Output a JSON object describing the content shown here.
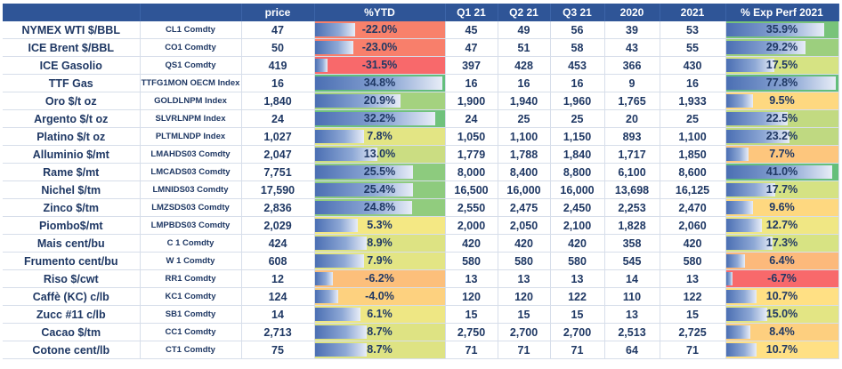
{
  "headers": [
    "",
    "",
    "price",
    "%YTD",
    "Q1 21",
    "Q2 21",
    "Q3 21",
    "2020",
    "2021",
    "% Exp Perf 2021"
  ],
  "rows": [
    {
      "name": "NYMEX WTI $/BBL",
      "ticker": "CL1 Comdty",
      "price": "47",
      "ytd": "-22.0%",
      "ytd_bg": "#f8816b",
      "ytd_bar": 0.31,
      "q1": "45",
      "q2": "49",
      "q3": "56",
      "y2020": "39",
      "y2021": "53",
      "exp": "35.9%",
      "exp_bg": "#78c37a",
      "exp_bar": 0.88
    },
    {
      "name": "ICE Brent $/BBL",
      "ticker": "CO1 Comdty",
      "price": "50",
      "ytd": "-23.0%",
      "ytd_bg": "#f87f6b",
      "ytd_bar": 0.3,
      "q1": "47",
      "q2": "51",
      "q3": "58",
      "y2020": "43",
      "y2021": "55",
      "exp": "29.2%",
      "exp_bg": "#9ccf7e",
      "exp_bar": 0.71
    },
    {
      "name": "ICE Gasolio",
      "ticker": "QS1 Comdty",
      "price": "419",
      "ytd": "-31.5%",
      "ytd_bg": "#f8696b",
      "ytd_bar": 0.1,
      "q1": "397",
      "q2": "428",
      "q3": "453",
      "y2020": "366",
      "y2021": "430",
      "exp": "17.5%",
      "exp_bg": "#d6e383",
      "exp_bar": 0.43
    },
    {
      "name": "TTF Gas",
      "ticker": "TTFG1MON OECM Index",
      "price": "16",
      "ytd": "34.8%",
      "ytd_bg": "#63be7b",
      "ytd_bar": 0.98,
      "q1": "16",
      "q2": "16",
      "q3": "16",
      "y2020": "9",
      "y2021": "16",
      "exp": "77.8%",
      "exp_bg": "#63be7b",
      "exp_bar": 0.98
    },
    {
      "name": "Oro $/t oz",
      "ticker": "GOLDLNPM Index",
      "price": "1,840",
      "ytd": "20.9%",
      "ytd_bg": "#a4d27f",
      "ytd_bar": 0.66,
      "q1": "1,900",
      "q2": "1,940",
      "q3": "1,960",
      "y2020": "1,765",
      "y2021": "1,933",
      "exp": "9.5%",
      "exp_bg": "#fed880",
      "exp_bar": 0.24
    },
    {
      "name": "Argento $/t oz",
      "ticker": "SLVRLNPM Index",
      "price": "24",
      "ytd": "32.2%",
      "ytd_bg": "#70c27c",
      "ytd_bar": 0.93,
      "q1": "24",
      "q2": "25",
      "q3": "25",
      "y2020": "20",
      "y2021": "25",
      "exp": "22.5%",
      "exp_bg": "#c2da81",
      "exp_bar": 0.55
    },
    {
      "name": "Platino $/t oz",
      "ticker": "PLTMLNDP Index",
      "price": "1,027",
      "ytd": "7.8%",
      "ytd_bg": "#e3e584",
      "ytd_bar": 0.38,
      "q1": "1,050",
      "q2": "1,100",
      "q3": "1,150",
      "y2020": "893",
      "y2021": "1,100",
      "exp": "23.2%",
      "exp_bg": "#bfd981",
      "exp_bar": 0.57
    },
    {
      "name": "Alluminio $/mt",
      "ticker": "LMAHDS03 Comdty",
      "price": "2,047",
      "ytd": "13.0%",
      "ytd_bg": "#cbdd82",
      "ytd_bar": 0.48,
      "q1": "1,779",
      "q2": "1,788",
      "q3": "1,840",
      "y2020": "1,717",
      "y2021": "1,850",
      "exp": "7.7%",
      "exp_bg": "#fdc67d",
      "exp_bar": 0.2
    },
    {
      "name": "Rame $/mt",
      "ticker": "LMCADS03 Comdty",
      "price": "7,751",
      "ytd": "25.5%",
      "ytd_bg": "#8dcb7e",
      "ytd_bar": 0.76,
      "q1": "8,000",
      "q2": "8,400",
      "q3": "8,800",
      "y2020": "6,100",
      "y2021": "8,600",
      "exp": "41.0%",
      "exp_bg": "#65bf7b",
      "exp_bar": 0.95
    },
    {
      "name": "Nichel $/tm",
      "ticker": "LMNIDS03 Comdty",
      "price": "17,590",
      "ytd": "25.4%",
      "ytd_bg": "#8ecb7e",
      "ytd_bar": 0.76,
      "q1": "16,500",
      "q2": "16,000",
      "q3": "16,000",
      "y2020": "13,698",
      "y2021": "16,125",
      "exp": "17.7%",
      "exp_bg": "#d5e283",
      "exp_bar": 0.44
    },
    {
      "name": "Zinco $/tm",
      "ticker": "LMZSDS03 Comdty",
      "price": "2,836",
      "ytd": "24.8%",
      "ytd_bg": "#91cc7e",
      "ytd_bar": 0.75,
      "q1": "2,550",
      "q2": "2,475",
      "q3": "2,450",
      "y2020": "2,253",
      "y2021": "2,470",
      "exp": "9.6%",
      "exp_bg": "#fed880",
      "exp_bar": 0.24
    },
    {
      "name": "Piombo$/mt",
      "ticker": "LMPBDS03 Comdty",
      "price": "2,029",
      "ytd": "5.3%",
      "ytd_bg": "#f4e884",
      "ytd_bar": 0.33,
      "q1": "2,000",
      "q2": "2,050",
      "q3": "2,100",
      "y2020": "1,828",
      "y2021": "2,060",
      "exp": "12.7%",
      "exp_bg": "#f0e784",
      "exp_bar": 0.32
    },
    {
      "name": "Mais cent/bu",
      "ticker": "C 1 Comdty",
      "price": "424",
      "ytd": "8.9%",
      "ytd_bg": "#dde383",
      "ytd_bar": 0.4,
      "q1": "420",
      "q2": "420",
      "q3": "420",
      "y2020": "358",
      "y2021": "420",
      "exp": "17.3%",
      "exp_bg": "#d7e383",
      "exp_bar": 0.42
    },
    {
      "name": "Frumento cent/bu",
      "ticker": "W 1 Comdty",
      "price": "608",
      "ytd": "7.9%",
      "ytd_bg": "#e3e584",
      "ytd_bar": 0.38,
      "q1": "580",
      "q2": "580",
      "q3": "580",
      "y2020": "545",
      "y2021": "580",
      "exp": "6.4%",
      "exp_bg": "#fcb97b",
      "exp_bar": 0.17
    },
    {
      "name": "Riso $/cwt",
      "ticker": "RR1 Comdty",
      "price": "12",
      "ytd": "-6.2%",
      "ytd_bg": "#fcbf7b",
      "ytd_bar": 0.14,
      "q1": "13",
      "q2": "13",
      "q3": "13",
      "y2020": "14",
      "y2021": "13",
      "exp": "-6.7%",
      "exp_bg": "#f8696b",
      "exp_bar": 0.06
    },
    {
      "name": "Caffè (KC) c/lb",
      "ticker": "KC1 Comdty",
      "price": "124",
      "ytd": "-4.0%",
      "ytd_bg": "#fdd17f",
      "ytd_bar": 0.18,
      "q1": "120",
      "q2": "120",
      "q3": "122",
      "y2020": "110",
      "y2021": "122",
      "exp": "10.7%",
      "exp_bg": "#ffe084",
      "exp_bar": 0.27
    },
    {
      "name": "Zucc #11 c/lb",
      "ticker": "SB1 Comdty",
      "price": "14",
      "ytd": "6.1%",
      "ytd_bg": "#eee784",
      "ytd_bar": 0.35,
      "q1": "15",
      "q2": "15",
      "q3": "15",
      "y2020": "13",
      "y2021": "15",
      "exp": "15.0%",
      "exp_bg": "#e3e584",
      "exp_bar": 0.37
    },
    {
      "name": "Cacao $/tm",
      "ticker": "CC1 Comdty",
      "price": "2,713",
      "ytd": "8.7%",
      "ytd_bg": "#dee383",
      "ytd_bar": 0.4,
      "q1": "2,750",
      "q2": "2,700",
      "q3": "2,700",
      "y2020": "2,513",
      "y2021": "2,725",
      "exp": "8.4%",
      "exp_bg": "#fdcf7f",
      "exp_bar": 0.22
    },
    {
      "name": "Cotone cent/lb",
      "ticker": "CT1 Comdty",
      "price": "75",
      "ytd": "8.7%",
      "ytd_bg": "#dee383",
      "ytd_bar": 0.4,
      "q1": "71",
      "q2": "71",
      "q3": "71",
      "y2020": "64",
      "y2021": "71",
      "exp": "10.7%",
      "exp_bg": "#ffe084",
      "exp_bar": 0.27
    }
  ]
}
